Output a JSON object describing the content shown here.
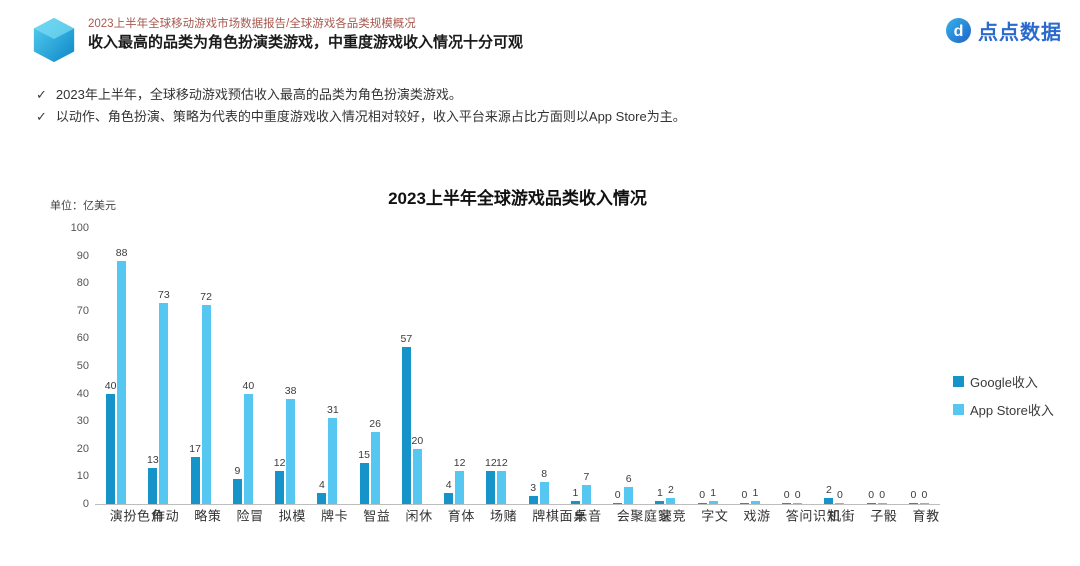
{
  "header": {
    "breadcrumb": "2023上半年全球移动游戏市场数据报告/全球游戏各品类规模概况",
    "title": "收入最高的品类为角色扮演类游戏，中重度游戏收入情况十分可观",
    "logo_text": "点点数据",
    "logo_letter": "d"
  },
  "bullet_marker": "✓",
  "bullets": [
    "2023年上半年，全球移动游戏预估收入最高的品类为角色扮演类游戏。",
    "以动作、角色扮演、策略为代表的中重度游戏收入情况相对较好，收入平台来源占比方面则以App Store为主。"
  ],
  "chart_data": {
    "type": "bar",
    "title": "2023上半年全球游戏品类收入情况",
    "unit_label": "单位：亿美元",
    "categories": [
      "角色扮演",
      "动作",
      "策略",
      "冒险",
      "模拟",
      "卡牌",
      "益智",
      "休闲",
      "体育",
      "赌场",
      "桌面棋牌",
      "音乐",
      "家庭聚会",
      "竞速",
      "文字",
      "游戏",
      "知识问答",
      "街机",
      "骰子",
      "教育"
    ],
    "series": [
      {
        "name": "Google收入",
        "color": "#1694ca",
        "values": [
          40,
          13,
          17,
          9,
          12,
          4,
          15,
          57,
          4,
          12,
          3,
          1,
          0,
          1,
          0,
          0,
          0,
          2,
          0,
          0
        ]
      },
      {
        "name": "App Store收入",
        "color": "#56c7f1",
        "values": [
          88,
          73,
          72,
          40,
          38,
          31,
          26,
          20,
          12,
          12,
          8,
          7,
          6,
          2,
          1,
          1,
          0,
          0,
          0,
          0
        ]
      }
    ],
    "ylim": [
      0,
      100
    ],
    "ytick_step": 10,
    "xlabel": "",
    "ylabel": "",
    "grid": false,
    "legend_position": "right"
  },
  "colors": {
    "accent_red": "#a8584e",
    "brand_blue": "#2a6ace",
    "google_bar": "#1694ca",
    "appstore_bar": "#56c7f1"
  }
}
